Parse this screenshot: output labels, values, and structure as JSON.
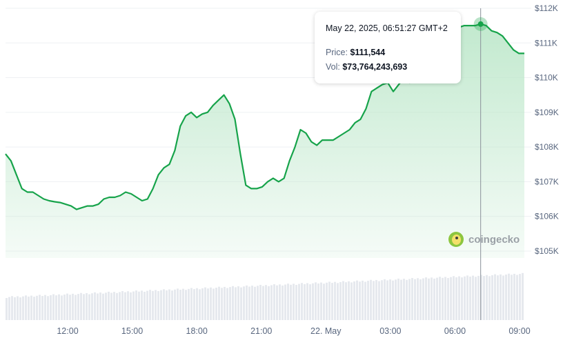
{
  "chart_data": {
    "type": "area",
    "series": [
      {
        "values": [
          107.8,
          107.6,
          107.2,
          106.8,
          106.7,
          106.7,
          106.6,
          106.5,
          106.45,
          106.42,
          106.4,
          106.35,
          106.3,
          106.2,
          106.25,
          106.3,
          106.3,
          106.35,
          106.5,
          106.55,
          106.55,
          106.6,
          106.7,
          106.65,
          106.55,
          106.45,
          106.5,
          106.8,
          107.2,
          107.4,
          107.5,
          107.9,
          108.6,
          108.9,
          109.0,
          108.85,
          108.95,
          109.0,
          109.2,
          109.35,
          109.5,
          109.25,
          108.8,
          107.8,
          106.9,
          106.8,
          106.8,
          106.85,
          107.0,
          107.1,
          107.0,
          107.1,
          107.6,
          108.0,
          108.5,
          108.4,
          108.15,
          108.05,
          108.2,
          108.2,
          108.2,
          108.3,
          108.4,
          108.5,
          108.7,
          108.8,
          109.1,
          109.6,
          109.7,
          109.8,
          109.85,
          109.6,
          109.8,
          110.0,
          109.85,
          109.9,
          110.2,
          110.4,
          110.7,
          110.95,
          111.2,
          111.3,
          111.35,
          111.45,
          111.5,
          111.5,
          111.5,
          111.544,
          111.5,
          111.35,
          111.3,
          111.2,
          111.0,
          110.8,
          110.7,
          110.7
        ]
      }
    ],
    "x_tick_labels": [
      "12:00",
      "15:00",
      "18:00",
      "21:00",
      "22. May",
      "03:00",
      "06:00",
      "09:00"
    ],
    "y_tick_labels": [
      "$112K",
      "$111K",
      "$110K",
      "$109K",
      "$108K",
      "$107K",
      "$106K",
      "$105K"
    ],
    "ylim": [
      104.8,
      112.0
    ],
    "grid": true,
    "volume_bars": true,
    "colors": {
      "line": "#16a34a",
      "area": "#c7ecd3",
      "volume": "#e6e9ee",
      "crosshair": "#8a9099"
    },
    "tooltip": {
      "date": "May 22, 2025, 06:51:27 GMT+2",
      "price_label": "Price:",
      "price_value": "$111,544",
      "vol_label": "Vol:",
      "vol_value": "$73,764,243,693",
      "index": 87
    },
    "watermark": "coingecko"
  }
}
